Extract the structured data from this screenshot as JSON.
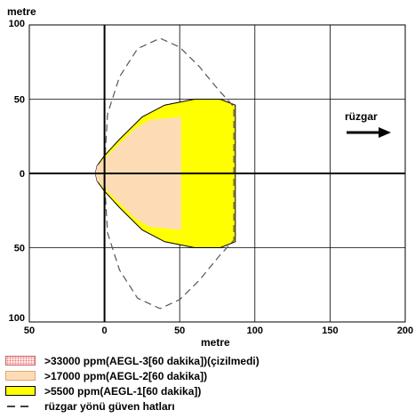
{
  "chart_data": {
    "type": "area",
    "ylabel": "metre",
    "xlabel": "metre",
    "xlim": [
      -50,
      200
    ],
    "ylim": [
      -100,
      100
    ],
    "x_ticks": [
      -50,
      0,
      50,
      100,
      150,
      200
    ],
    "y_ticks": [
      100,
      50,
      0,
      -50,
      -100
    ],
    "x_tick_labels": [
      "50",
      "0",
      "50",
      "100",
      "150",
      "200"
    ],
    "y_tick_labels": [
      "100",
      "50",
      "0",
      "50",
      "100"
    ],
    "grid": true,
    "wind_label": "rüzgar",
    "series": [
      {
        "name": ">5500 ppm(AEGL-1[60 dakika])",
        "color": "#ffff00",
        "outline": [
          [
            -5,
            5
          ],
          [
            -6,
            0
          ],
          [
            -5,
            -5
          ],
          [
            0,
            -12
          ],
          [
            10,
            -23
          ],
          [
            25,
            -38
          ],
          [
            40,
            -46
          ],
          [
            60,
            -50
          ],
          [
            77,
            -50
          ],
          [
            87,
            -46
          ],
          [
            87,
            46
          ],
          [
            77,
            50
          ],
          [
            60,
            50
          ],
          [
            40,
            46
          ],
          [
            25,
            38
          ],
          [
            10,
            23
          ],
          [
            0,
            12
          ]
        ]
      },
      {
        "name": ">17000 ppm(AEGL-2[60 dakika])",
        "color": "#fddcb5",
        "outline": [
          [
            -5,
            5
          ],
          [
            -6,
            0
          ],
          [
            -5,
            -5
          ],
          [
            0,
            -10
          ],
          [
            10,
            -20
          ],
          [
            20,
            -30
          ],
          [
            30,
            -36
          ],
          [
            51,
            -38
          ],
          [
            51,
            38
          ],
          [
            30,
            36
          ],
          [
            20,
            30
          ],
          [
            10,
            20
          ],
          [
            0,
            10
          ]
        ]
      },
      {
        "name": ">33000 ppm(AEGL-3[60 dakika])(çizilmedi)",
        "color": "#fbd3d3",
        "outline": []
      },
      {
        "name": "rüzgar yönü güven hatları",
        "color": "#555555",
        "outline": [
          [
            0,
            5
          ],
          [
            2,
            40
          ],
          [
            10,
            65
          ],
          [
            22,
            84
          ],
          [
            37,
            91
          ],
          [
            50,
            85
          ],
          [
            63,
            72
          ],
          [
            76,
            56
          ],
          [
            86,
            45
          ],
          [
            86,
            -45
          ],
          [
            76,
            -56
          ],
          [
            63,
            -72
          ],
          [
            50,
            -85
          ],
          [
            37,
            -91
          ],
          [
            22,
            -84
          ],
          [
            10,
            -65
          ],
          [
            2,
            -40
          ],
          [
            0,
            -5
          ]
        ]
      }
    ]
  },
  "legend": [
    {
      "label": ">33000 ppm(AEGL-3[60 dakika])(çizilmedi)",
      "color": "#fbd3d3",
      "style": "dotted"
    },
    {
      "label": ">17000 ppm(AEGL-2[60 dakika])",
      "color": "#fddcb5",
      "style": "fill"
    },
    {
      "label": ">5500 ppm(AEGL-1[60 dakika])",
      "color": "#ffff00",
      "style": "fill"
    },
    {
      "label": "rüzgar yönü güven hatları",
      "color": "#555555",
      "style": "dashed"
    }
  ]
}
